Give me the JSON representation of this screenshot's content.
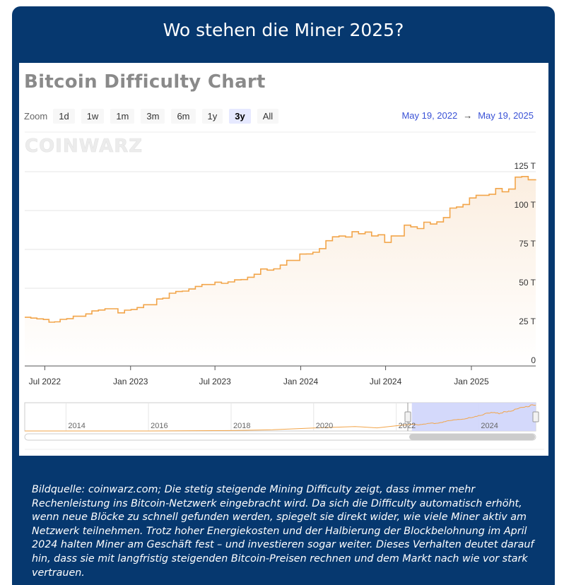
{
  "header": {
    "title": "Wo stehen die Miner 2025?"
  },
  "chart_header": {
    "title": "Bitcoin Difficulty Chart",
    "zoom_label": "Zoom",
    "zoom_options": [
      "1d",
      "1w",
      "1m",
      "3m",
      "6m",
      "1y",
      "3y",
      "All"
    ],
    "zoom_selected": "3y",
    "range_from": "May 19, 2022",
    "range_arrow": "→",
    "range_to": "May 19, 2025",
    "watermark": "COINWARZ"
  },
  "chart_data": {
    "type": "area",
    "title": "Bitcoin Difficulty Chart",
    "unit": "T",
    "ylim": [
      0,
      125
    ],
    "y_ticks": [
      0,
      25,
      50,
      75,
      100,
      125
    ],
    "y_tick_labels": [
      "0",
      "25 T",
      "50 T",
      "75 T",
      "100 T",
      "125 T"
    ],
    "x_range": [
      "2022-05-19",
      "2025-05-19"
    ],
    "x_ticks": [
      {
        "date": "2022-07-01",
        "label": "Jul 2022"
      },
      {
        "date": "2023-01-01",
        "label": "Jan 2023"
      },
      {
        "date": "2023-07-01",
        "label": "Jul 2023"
      },
      {
        "date": "2024-01-01",
        "label": "Jan 2024"
      },
      {
        "date": "2024-07-01",
        "label": "Jul 2024"
      },
      {
        "date": "2025-01-01",
        "label": "Jan 2025"
      }
    ],
    "series": [
      {
        "x": [
          "2022-05-19",
          "2022-06-01",
          "2022-06-14",
          "2022-06-28",
          "2022-07-10",
          "2022-07-22",
          "2022-08-03",
          "2022-08-17",
          "2022-08-31",
          "2022-09-14",
          "2022-09-27",
          "2022-10-10",
          "2022-10-24",
          "2022-11-07",
          "2022-11-21",
          "2022-12-05",
          "2022-12-19",
          "2023-01-02",
          "2023-01-15",
          "2023-01-29",
          "2023-02-12",
          "2023-02-26",
          "2023-03-11",
          "2023-03-25",
          "2023-04-08",
          "2023-04-22",
          "2023-05-06",
          "2023-05-20",
          "2023-06-03",
          "2023-06-17",
          "2023-07-01",
          "2023-07-15",
          "2023-07-29",
          "2023-08-12",
          "2023-08-26",
          "2023-09-09",
          "2023-09-23",
          "2023-10-07",
          "2023-10-21",
          "2023-11-04",
          "2023-11-18",
          "2023-12-02",
          "2023-12-16",
          "2023-12-30",
          "2024-01-13",
          "2024-01-27",
          "2024-02-10",
          "2024-02-24",
          "2024-03-09",
          "2024-03-23",
          "2024-04-06",
          "2024-04-20",
          "2024-05-04",
          "2024-05-18",
          "2024-06-01",
          "2024-06-15",
          "2024-06-29",
          "2024-07-13",
          "2024-07-27",
          "2024-08-10",
          "2024-08-24",
          "2024-09-07",
          "2024-09-21",
          "2024-10-05",
          "2024-10-19",
          "2024-11-02",
          "2024-11-16",
          "2024-11-30",
          "2024-12-14",
          "2024-12-28",
          "2025-01-11",
          "2025-01-25",
          "2025-02-08",
          "2025-02-22",
          "2025-03-08",
          "2025-03-22",
          "2025-04-05",
          "2025-04-19",
          "2025-05-03",
          "2025-05-19"
        ],
        "values": [
          31.3,
          30.8,
          30.3,
          29.9,
          28.2,
          28.4,
          30.0,
          30.4,
          32.0,
          32.0,
          33.5,
          35.4,
          36.0,
          36.8,
          36.8,
          34.2,
          35.9,
          36.3,
          37.6,
          39.4,
          39.4,
          43.1,
          43.6,
          46.8,
          47.9,
          48.2,
          49.5,
          51.2,
          52.4,
          52.4,
          53.9,
          53.2,
          54.1,
          55.4,
          55.6,
          57.1,
          59.0,
          62.4,
          61.7,
          62.5,
          64.9,
          67.9,
          67.9,
          72.0,
          72.1,
          73.2,
          75.5,
          80.6,
          83.1,
          83.6,
          83.0,
          86.4,
          85.1,
          86.2,
          83.7,
          84.4,
          79.5,
          83.7,
          83.7,
          90.6,
          89.5,
          88.4,
          92.5,
          91.3,
          92.7,
          95.5,
          101.6,
          102.3,
          103.9,
          108.1,
          109.8,
          109.8,
          110.5,
          114.2,
          112.1,
          113.8,
          121.5,
          121.9,
          119.8,
          120.0
        ]
      }
    ],
    "navigator": {
      "x_tick_labels": [
        "2014",
        "2016",
        "2018",
        "2020",
        "2022",
        "2024"
      ],
      "selected_range": [
        "2022-05-19",
        "2025-05-19"
      ]
    },
    "colors": {
      "line": "#f2a54a",
      "area_top": "#fbeee0",
      "selection": "#cfd5fb"
    },
    "grid": true,
    "legend": "none"
  },
  "caption": {
    "text": "Bildquelle: coinwarz.com; Die stetig steigende Mining Difficulty zeigt, dass immer mehr Rechenleistung ins Bitcoin-Netzwerk eingebracht wird. Da sich die Difficulty automatisch erhöht, wenn neue Blöcke zu schnell gefunden werden, spiegelt sie direkt wider, wie viele Miner aktiv am Netzwerk teilnehmen. Trotz hoher Energiekosten und der Halbierung der Blockbelohnung im April 2024 halten Miner am Geschäft fest – und investieren sogar weiter. Dieses Verhalten deutet darauf hin, dass sie mit langfristig steigenden Bitcoin-Preisen rechnen und dem Markt nach wie vor stark vertrauen."
  }
}
